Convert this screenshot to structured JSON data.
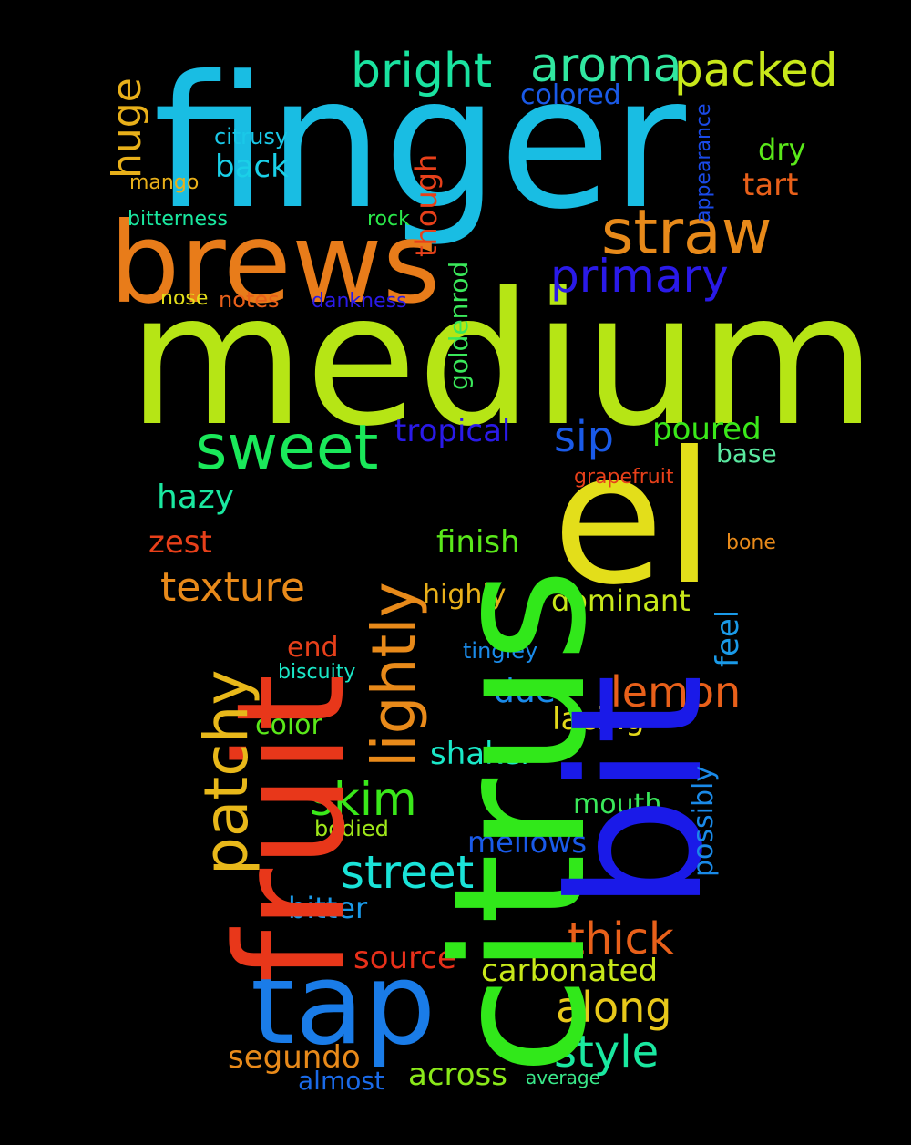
{
  "words": [
    {
      "id": "finger",
      "text": "finger",
      "color": "#19bde3"
    },
    {
      "id": "medium",
      "text": "medium",
      "color": "#b6e515"
    },
    {
      "id": "citrus",
      "text": "citrus",
      "color": "#31e81a"
    },
    {
      "id": "fruit",
      "text": "fruit",
      "color": "#e8371a"
    },
    {
      "id": "bit",
      "text": "bit",
      "color": "#1a1ae8"
    },
    {
      "id": "el",
      "text": "el",
      "color": "#e3de1a"
    },
    {
      "id": "brews",
      "text": "brews",
      "color": "#e87c1a"
    },
    {
      "id": "tap",
      "text": "tap",
      "color": "#1a7ce8"
    },
    {
      "id": "sweet",
      "text": "sweet",
      "color": "#1ae85a"
    },
    {
      "id": "straw",
      "text": "straw",
      "color": "#e88a1a"
    },
    {
      "id": "bright",
      "text": "bright",
      "color": "#1ae3a0"
    },
    {
      "id": "aroma",
      "text": "aroma",
      "color": "#31e8a0"
    },
    {
      "id": "packed",
      "text": "packed",
      "color": "#c8e81a"
    },
    {
      "id": "primary",
      "text": "primary",
      "color": "#2a1ae8"
    },
    {
      "id": "patchy",
      "text": "patchy",
      "color": "#e8b81a"
    },
    {
      "id": "lightly",
      "text": "lightly",
      "color": "#e88a1a"
    },
    {
      "id": "huge",
      "text": "huge",
      "color": "#e8b01a"
    },
    {
      "id": "colored",
      "text": "colored",
      "color": "#1a5ae8"
    },
    {
      "id": "citrusy",
      "text": "citrusy",
      "color": "#1ac8e8"
    },
    {
      "id": "back",
      "text": "back",
      "color": "#1ad0e8"
    },
    {
      "id": "dry",
      "text": "dry",
      "color": "#5ae81a"
    },
    {
      "id": "tart",
      "text": "tart",
      "color": "#e8601a"
    },
    {
      "id": "appearance",
      "text": "appearance",
      "color": "#1a4ae8"
    },
    {
      "id": "mango",
      "text": "mango",
      "color": "#e8b01a"
    },
    {
      "id": "bitterness",
      "text": "bitterness",
      "color": "#1ae8a0"
    },
    {
      "id": "rock",
      "text": "rock",
      "color": "#2ae84a"
    },
    {
      "id": "though",
      "text": "though",
      "color": "#e8401a"
    },
    {
      "id": "nose",
      "text": "nose",
      "color": "#e3de1a"
    },
    {
      "id": "notes",
      "text": "notes",
      "color": "#e8601a"
    },
    {
      "id": "dankness",
      "text": "dankness",
      "color": "#2a1ae8"
    },
    {
      "id": "goldenrod",
      "text": "goldenrod",
      "color": "#3ae85a"
    },
    {
      "id": "tropical",
      "text": "tropical",
      "color": "#2a1ae8"
    },
    {
      "id": "sip",
      "text": "sip",
      "color": "#1a5ae8"
    },
    {
      "id": "poured",
      "text": "poured",
      "color": "#3ae81a"
    },
    {
      "id": "base",
      "text": "base",
      "color": "#5ae8a0"
    },
    {
      "id": "grapefruit",
      "text": "grapefruit",
      "color": "#e8401a"
    },
    {
      "id": "hazy",
      "text": "hazy",
      "color": "#1ae8a0"
    },
    {
      "id": "zest",
      "text": "zest",
      "color": "#e8401a"
    },
    {
      "id": "finish",
      "text": "finish",
      "color": "#5ae81a"
    },
    {
      "id": "bone",
      "text": "bone",
      "color": "#e88a1a"
    },
    {
      "id": "texture",
      "text": "texture",
      "color": "#e88a1a"
    },
    {
      "id": "highly",
      "text": "highly",
      "color": "#e8b01a"
    },
    {
      "id": "dominant",
      "text": "dominant",
      "color": "#c8e81a"
    },
    {
      "id": "feel",
      "text": "feel",
      "color": "#1a9ae8"
    },
    {
      "id": "end",
      "text": "end",
      "color": "#e8401a"
    },
    {
      "id": "tingley",
      "text": "tingley",
      "color": "#1a8ae8"
    },
    {
      "id": "biscuity",
      "text": "biscuity",
      "color": "#1ae8c8"
    },
    {
      "id": "lemon",
      "text": "lemon",
      "color": "#e8601a"
    },
    {
      "id": "due",
      "text": "due",
      "color": "#1a8ae8"
    },
    {
      "id": "color",
      "text": "color",
      "color": "#5ae81a"
    },
    {
      "id": "lacing",
      "text": "lacing",
      "color": "#e3d81a"
    },
    {
      "id": "shaker",
      "text": "shaker",
      "color": "#1ae8c8"
    },
    {
      "id": "possibly",
      "text": "possibly",
      "color": "#1a8ae8"
    },
    {
      "id": "skim",
      "text": "skim",
      "color": "#3ae81a"
    },
    {
      "id": "mouth",
      "text": "mouth",
      "color": "#3ae85a"
    },
    {
      "id": "bodied",
      "text": "bodied",
      "color": "#a0e81a"
    },
    {
      "id": "mellows",
      "text": "mellows",
      "color": "#1a5ae8"
    },
    {
      "id": "street",
      "text": "street",
      "color": "#1ae3d8"
    },
    {
      "id": "bitter",
      "text": "bitter",
      "color": "#1a9ae8"
    },
    {
      "id": "thick",
      "text": "thick",
      "color": "#e8601a"
    },
    {
      "id": "source",
      "text": "source",
      "color": "#e8301a"
    },
    {
      "id": "carbonated",
      "text": "carbonated",
      "color": "#c8e81a"
    },
    {
      "id": "along",
      "text": "along",
      "color": "#e8c81a"
    },
    {
      "id": "style",
      "text": "style",
      "color": "#1ae8a0"
    },
    {
      "id": "segundo",
      "text": "segundo",
      "color": "#e88a1a"
    },
    {
      "id": "across",
      "text": "across",
      "color": "#8ae81a"
    },
    {
      "id": "almost",
      "text": "almost",
      "color": "#1a6ae8"
    },
    {
      "id": "average",
      "text": "average",
      "color": "#3ae88a"
    }
  ]
}
